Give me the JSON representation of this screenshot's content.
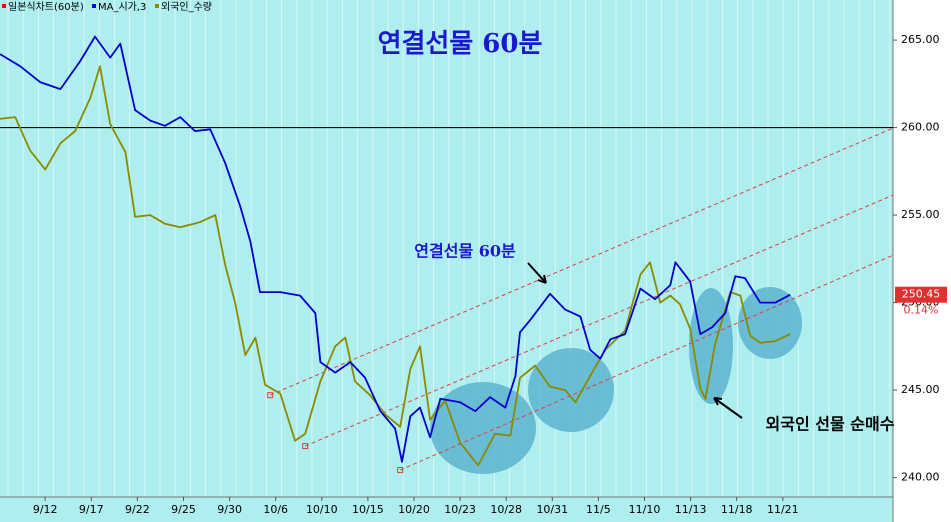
{
  "chart_data": {
    "type": "line",
    "title": "연결선물 60분",
    "legend": [
      {
        "name": "일본식차트(60분)",
        "color": "#ff0000"
      },
      {
        "name": "MA_시가,3",
        "color": "#0000ff"
      },
      {
        "name": "외국인_수량",
        "color": "#8b8b00"
      }
    ],
    "annotations": [
      "연결선물 60분",
      "외국인 선물 순매수"
    ],
    "last_label": "250.45",
    "change_label": "0.14%",
    "xlim": [
      -0.98,
      18.39
    ],
    "xticks": [
      {
        "value": 0,
        "label": "9/12"
      },
      {
        "value": 1,
        "label": "9/17"
      },
      {
        "value": 2,
        "label": "9/22"
      },
      {
        "value": 3,
        "label": "9/25"
      },
      {
        "value": 4,
        "label": "9/30"
      },
      {
        "value": 5,
        "label": "10/6"
      },
      {
        "value": 6,
        "label": "10/10"
      },
      {
        "value": 7,
        "label": "10/15"
      },
      {
        "value": 8,
        "label": "10/20"
      },
      {
        "value": 9,
        "label": "10/23"
      },
      {
        "value": 10,
        "label": "10/28"
      },
      {
        "value": 11,
        "label": "10/31"
      },
      {
        "value": 12,
        "label": "11/5"
      },
      {
        "value": 13,
        "label": "11/10"
      },
      {
        "value": 14,
        "label": "11/13"
      },
      {
        "value": 15,
        "label": "11/18"
      },
      {
        "value": 16,
        "label": "11/21"
      }
    ],
    "ylim": [
      238.89,
      267.29
    ],
    "yticks": [
      {
        "value": 240,
        "label": "240.00"
      },
      {
        "value": 245,
        "label": "245.00"
      },
      {
        "value": 250,
        "label": "250.00"
      },
      {
        "value": 255,
        "label": "255.00"
      },
      {
        "value": 260,
        "label": "260.00"
      },
      {
        "value": 265,
        "label": "265.00"
      }
    ],
    "hline": 260,
    "series": [
      {
        "color": "#0000cc",
        "x": [
          -0.98,
          -0.54,
          -0.11,
          0.33,
          0.76,
          1.08,
          1.41,
          1.63,
          1.95,
          2.28,
          2.6,
          2.93,
          3.25,
          3.58,
          3.9,
          4.23,
          4.45,
          4.66,
          5.1,
          5.53,
          5.86,
          5.97,
          6.29,
          6.62,
          6.94,
          7.27,
          7.59,
          7.74,
          7.92,
          8.13,
          8.35,
          8.57,
          9.0,
          9.33,
          9.65,
          9.98,
          10.2,
          10.3,
          10.52,
          10.95,
          11.28,
          11.61,
          11.82,
          12.04,
          12.26,
          12.58,
          12.91,
          13.23,
          13.56,
          13.67,
          13.99,
          14.21,
          14.47,
          14.75,
          14.97,
          15.18,
          15.51,
          15.84,
          16.16
        ],
        "values": [
          264.2,
          263.5,
          262.6,
          262.2,
          263.8,
          265.2,
          264,
          264.8,
          261,
          260.4,
          260.1,
          260.6,
          259.8,
          259.9,
          258,
          255.5,
          253.5,
          250.6,
          250.6,
          250.4,
          249.4,
          246.6,
          246,
          246.6,
          245.7,
          243.8,
          242.8,
          240.9,
          243.5,
          244,
          242.3,
          244.5,
          244.3,
          243.8,
          244.6,
          244,
          245.8,
          248.3,
          249,
          250.5,
          249.6,
          249.2,
          247.3,
          246.8,
          247.9,
          248.2,
          250.8,
          250.2,
          251,
          252.3,
          251.2,
          248.2,
          248.6,
          249.4,
          251.5,
          251.4,
          250,
          250,
          250.45
        ]
      },
      {
        "color": "#8b8b00",
        "x": [
          -0.98,
          -0.65,
          -0.33,
          0,
          0.33,
          0.65,
          0.98,
          1.19,
          1.41,
          1.74,
          1.95,
          2.28,
          2.6,
          2.93,
          3.36,
          3.69,
          3.9,
          4.12,
          4.34,
          4.56,
          4.77,
          5.1,
          5.42,
          5.64,
          5.97,
          6.29,
          6.51,
          6.72,
          7.05,
          7.38,
          7.7,
          7.92,
          8.13,
          8.35,
          8.68,
          9.0,
          9.39,
          9.76,
          10.09,
          10.3,
          10.63,
          10.95,
          11.28,
          11.5,
          11.82,
          12.15,
          12.58,
          12.91,
          13.12,
          13.34,
          13.56,
          13.77,
          13.99,
          14.21,
          14.32,
          14.53,
          14.86,
          15.08,
          15.29,
          15.51,
          15.84,
          16.16
        ],
        "values": [
          260.5,
          260.6,
          258.7,
          257.6,
          259.1,
          259.8,
          261.7,
          263.5,
          260.2,
          258.6,
          254.9,
          255,
          254.5,
          254.3,
          254.6,
          255,
          252.2,
          250,
          247,
          248,
          245.3,
          244.8,
          242.1,
          242.5,
          245.5,
          247.5,
          248,
          245.5,
          244.7,
          243.6,
          242.9,
          246.2,
          247.5,
          243.3,
          244.4,
          242,
          240.7,
          242.5,
          242.4,
          245.7,
          246.4,
          245.2,
          245,
          244.3,
          245.8,
          247.3,
          248.4,
          251.6,
          252.3,
          250,
          250.4,
          249.9,
          248.5,
          245.1,
          244.5,
          247.6,
          250.6,
          250.4,
          248.1,
          247.7,
          247.8,
          248.2
        ]
      }
    ],
    "trendlines": [
      {
        "x": [
          4.88,
          18.39
        ],
        "values": [
          244.71,
          259.97
        ]
      },
      {
        "x": [
          5.64,
          18.39
        ],
        "values": [
          241.8,
          256.14
        ]
      },
      {
        "x": [
          7.7,
          18.39
        ],
        "values": [
          240.43,
          252.71
        ]
      }
    ]
  }
}
